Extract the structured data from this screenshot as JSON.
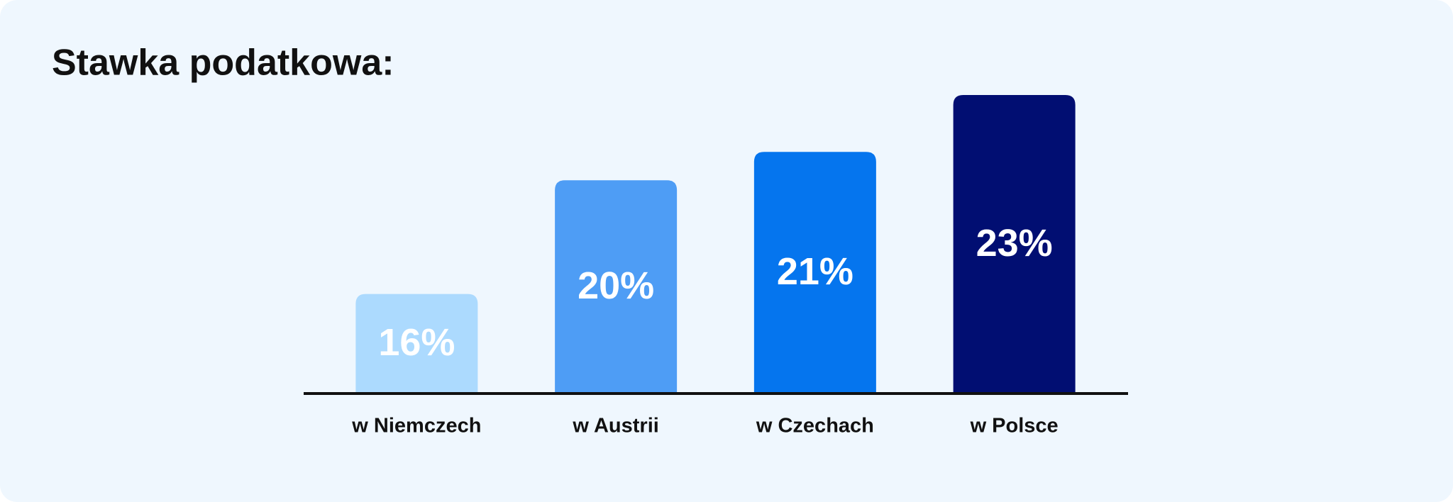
{
  "chart_data": {
    "type": "bar",
    "title": "Stawka podatkowa:",
    "categories": [
      "w Niemczech",
      "w Austrii",
      "w Czechach",
      "w Polsce"
    ],
    "values": [
      16,
      20,
      21,
      23
    ],
    "value_labels": [
      "16%",
      "20%",
      "21%",
      "23%"
    ],
    "colors": [
      "#acdafe",
      "#4e9df5",
      "#0575ee",
      "#010e72"
    ],
    "ylim": [
      12.5,
      23
    ]
  }
}
